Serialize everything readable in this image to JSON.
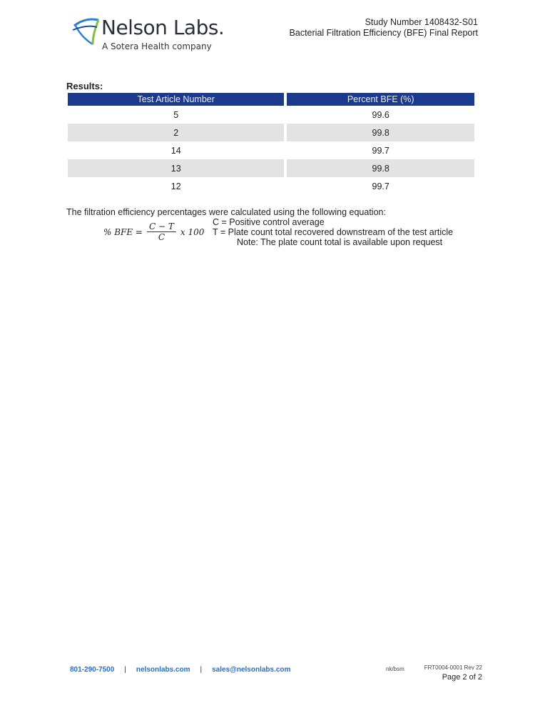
{
  "header": {
    "logo": "Nelson Labs.",
    "logo_tagline": "A Sotera Health company",
    "study_number": "Study Number 1408432-S01",
    "report_title": "Bacterial Filtration Efficiency (BFE) Final Report"
  },
  "results": {
    "heading": "Results:",
    "columns": [
      "Test Article Number",
      "Percent BFE (%)"
    ],
    "rows": [
      [
        "5",
        "99.6"
      ],
      [
        "2",
        "99.8"
      ],
      [
        "14",
        "99.7"
      ],
      [
        "13",
        "99.8"
      ],
      [
        "12",
        "99.7"
      ]
    ]
  },
  "equation": {
    "intro": "The filtration efficiency percentages were calculated using the following equation:",
    "lhs": "% BFE =",
    "numerator": "C − T",
    "denominator": "C",
    "rhs": "x 100",
    "definitions": [
      "C = Positive control average",
      "T = Plate count total recovered downstream of the test article",
      "Note: The plate count total is available upon request"
    ]
  },
  "footer": {
    "phone": "801-290-7500",
    "website": "nelsonlabs.com",
    "email": "sales@nelsonlabs.com",
    "separator": "|",
    "initials": "nk/bsm",
    "form_number": "FRT0004-0001 Rev 22",
    "page": "Page 2 of 2"
  },
  "colors": {
    "table_header": "#1c3a8c",
    "link": "#1f6fd1"
  }
}
